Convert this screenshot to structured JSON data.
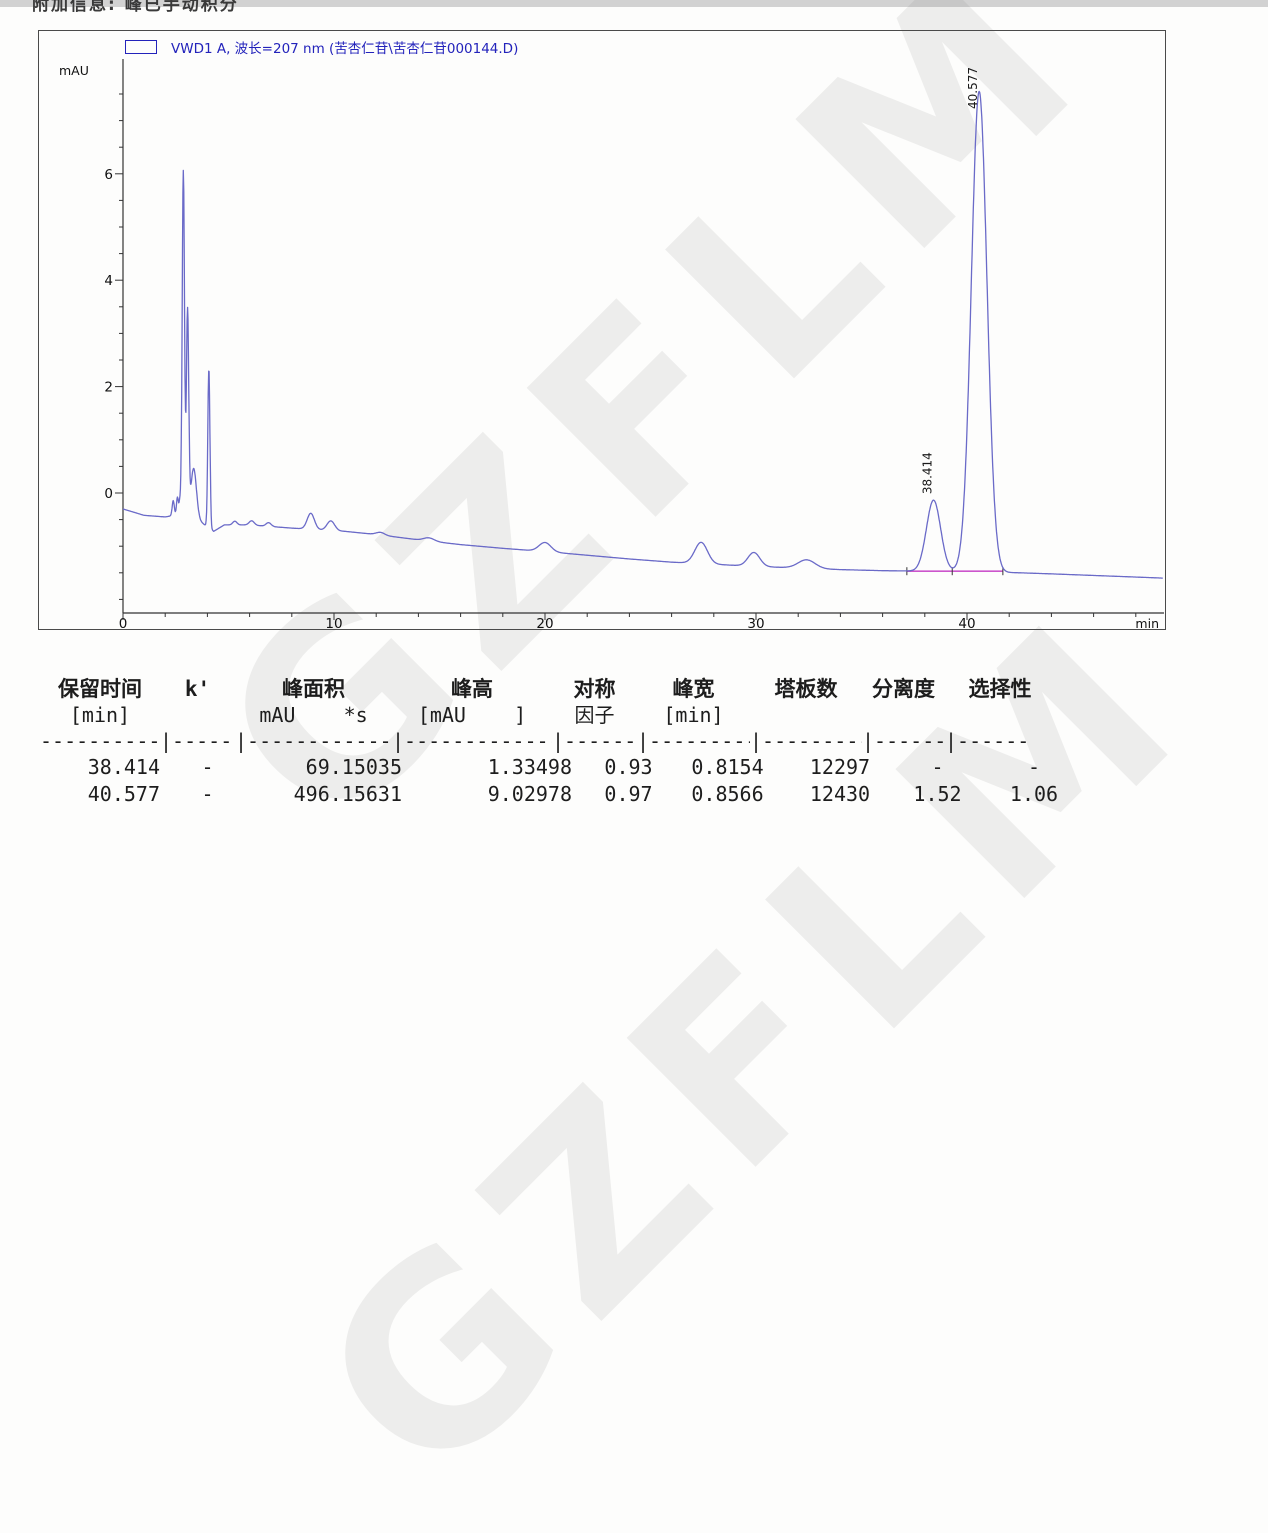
{
  "header": {
    "note": "附加信息: 峰已手动积分"
  },
  "watermark": {
    "text": "GZFLM"
  },
  "legend": {
    "label": "VWD1 A, 波长=207 nm (苦杏仁苷\\苦杏仁苷000144.D)"
  },
  "colors": {
    "curve": "#6a6ac8",
    "integration_baseline": "#cc55cc",
    "legend_text": "#2323bb",
    "axis": "#333333"
  },
  "chart_data": {
    "type": "line",
    "title": "VWD1 A, 波长=207 nm (苦杏仁苷\\苦杏仁苷000144.D)",
    "xlabel": "min",
    "ylabel": "mAU",
    "x_range": [
      0,
      49.3
    ],
    "y_view": [
      -2.3,
      8.1
    ],
    "x_ticks_major": [
      0,
      10,
      20,
      30,
      40
    ],
    "x_tick_minor_step": 2,
    "y_ticks_major": [
      0,
      2,
      4,
      6
    ],
    "y_tick_minor_step": 0.5,
    "y_minor_range": [
      -2,
      7.5
    ],
    "grid": "off",
    "legend_position": "top-left",
    "baseline_points": [
      [
        0,
        -0.3
      ],
      [
        1,
        -0.42
      ],
      [
        2,
        -0.45
      ],
      [
        2.7,
        -0.4
      ],
      [
        3.6,
        -0.52
      ],
      [
        4.3,
        -0.72
      ],
      [
        4.8,
        -0.6
      ],
      [
        6,
        -0.6
      ],
      [
        7,
        -0.63
      ],
      [
        8,
        -0.66
      ],
      [
        10.5,
        -0.72
      ],
      [
        12,
        -0.78
      ],
      [
        14,
        -0.88
      ],
      [
        16,
        -0.97
      ],
      [
        18,
        -1.04
      ],
      [
        20,
        -1.1
      ],
      [
        22,
        -1.17
      ],
      [
        24,
        -1.24
      ],
      [
        26,
        -1.3
      ],
      [
        28,
        -1.34
      ],
      [
        30,
        -1.38
      ],
      [
        32,
        -1.41
      ],
      [
        34,
        -1.44
      ],
      [
        36,
        -1.46
      ],
      [
        38,
        -1.47
      ],
      [
        39.5,
        -1.47
      ],
      [
        42.5,
        -1.5
      ],
      [
        44,
        -1.52
      ],
      [
        46,
        -1.55
      ],
      [
        48,
        -1.58
      ],
      [
        49.3,
        -1.6
      ]
    ],
    "peaks": [
      {
        "t": 2.38,
        "height": 0.28,
        "sigma": 0.05
      },
      {
        "t": 2.58,
        "height": 0.33,
        "sigma": 0.045
      },
      {
        "t": 2.7,
        "height": 0.25,
        "sigma": 0.04
      },
      {
        "t": 2.86,
        "height": 6.48,
        "sigma": 0.055
      },
      {
        "t": 3.06,
        "height": 3.85,
        "sigma": 0.055
      },
      {
        "t": 3.35,
        "height": 0.95,
        "sigma": 0.13
      },
      {
        "t": 4.07,
        "height": 3.0,
        "sigma": 0.05
      },
      {
        "t": 5.3,
        "height": 0.07,
        "sigma": 0.1
      },
      {
        "t": 6.1,
        "height": 0.08,
        "sigma": 0.12
      },
      {
        "t": 6.9,
        "height": 0.07,
        "sigma": 0.12
      },
      {
        "t": 8.9,
        "height": 0.3,
        "sigma": 0.17
      },
      {
        "t": 9.85,
        "height": 0.18,
        "sigma": 0.18
      },
      {
        "t": 12.2,
        "height": 0.05,
        "sigma": 0.2
      },
      {
        "t": 14.5,
        "height": 0.06,
        "sigma": 0.25
      },
      {
        "t": 20.0,
        "height": 0.17,
        "sigma": 0.28
      },
      {
        "t": 27.4,
        "height": 0.4,
        "sigma": 0.3
      },
      {
        "t": 29.9,
        "height": 0.26,
        "sigma": 0.28
      },
      {
        "t": 32.4,
        "height": 0.16,
        "sigma": 0.4
      },
      {
        "t": 38.414,
        "height": 1.335,
        "sigma": 0.335,
        "label": "38.414"
      },
      {
        "t": 40.577,
        "height": 9.03,
        "sigma": 0.37,
        "label": "40.577"
      }
    ],
    "integration_baseline": {
      "t_start": 37.15,
      "t_end": 41.7,
      "value": -1.47,
      "tick_times": [
        37.15,
        39.3,
        41.7
      ],
      "color": "#cc55cc"
    }
  },
  "table": {
    "columns": [
      {
        "h1": "保留时间",
        "h2": "[min]"
      },
      {
        "h1": "k'",
        "h2": ""
      },
      {
        "h1": "峰面积",
        "h2": "mAU    *s"
      },
      {
        "h1": "峰高",
        "h2": "[mAU    ]"
      },
      {
        "h1": "对称",
        "h2": "因子"
      },
      {
        "h1": "峰宽",
        "h2": "[min]"
      },
      {
        "h1": "塔板数",
        "h2": ""
      },
      {
        "h1": "分离度",
        "h2": ""
      },
      {
        "h1": "选择性",
        "h2": ""
      }
    ],
    "separator": [
      "----------",
      "|------",
      "|-------------",
      "|-------------",
      "|-------",
      "|---------",
      "|---------",
      "|-------",
      "|------"
    ],
    "rows": [
      [
        "38.414",
        "-",
        "69.15035",
        "1.33498",
        "0.93",
        "0.8154",
        "12297",
        "-",
        "-"
      ],
      [
        "40.577",
        "-",
        "496.15631",
        "9.02978",
        "0.97",
        "0.8566",
        "12430",
        "1.52",
        "1.06"
      ]
    ]
  }
}
